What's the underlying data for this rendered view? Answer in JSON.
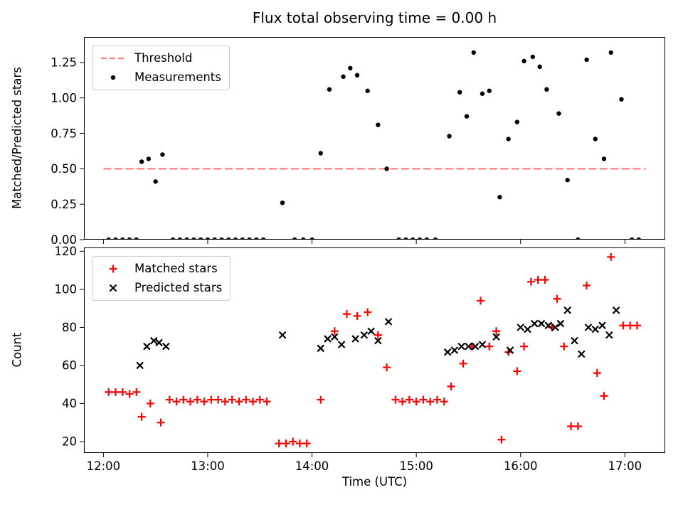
{
  "figure": {
    "title": "Flux total observing time = 0.00 h"
  },
  "chart_data": [
    {
      "type": "scatter",
      "title": "Flux total observing time = 0.00 h",
      "ylabel": "Matched/Predicted stars",
      "x_unit": "minutes after 12:00 UTC",
      "xlim": [
        -11.2,
        323.2
      ],
      "ylim": [
        0,
        1.43
      ],
      "grid": false,
      "legend_position": "upper left",
      "yticks": [
        {
          "v": 0.0,
          "label": "0.00"
        },
        {
          "v": 0.25,
          "label": "0.25"
        },
        {
          "v": 0.5,
          "label": "0.50"
        },
        {
          "v": 0.75,
          "label": "0.75"
        },
        {
          "v": 1.0,
          "label": "1.00"
        },
        {
          "v": 1.25,
          "label": "1.25"
        }
      ],
      "xticks": [
        {
          "t": 0
        },
        {
          "t": 60
        },
        {
          "t": 120
        },
        {
          "t": 180
        },
        {
          "t": 240
        },
        {
          "t": 300
        }
      ],
      "threshold": {
        "label": "Threshold",
        "value": 0.5,
        "color": "#ff7f7f",
        "span": [
          0,
          312
        ],
        "style": "dashed"
      },
      "series": [
        {
          "name": "Measurements",
          "marker": "dot",
          "color": "#000000",
          "points": [
            [
              3,
              0
            ],
            [
              7,
              0
            ],
            [
              11,
              0
            ],
            [
              15,
              0
            ],
            [
              19,
              0
            ],
            [
              22,
              0.55
            ],
            [
              26,
              0.57
            ],
            [
              30,
              0.41
            ],
            [
              34,
              0.6
            ],
            [
              40,
              0
            ],
            [
              44,
              0
            ],
            [
              48,
              0
            ],
            [
              52,
              0
            ],
            [
              56,
              0
            ],
            [
              60,
              0
            ],
            [
              64,
              0
            ],
            [
              68,
              0
            ],
            [
              72,
              0
            ],
            [
              76,
              0
            ],
            [
              80,
              0
            ],
            [
              84,
              0
            ],
            [
              88,
              0
            ],
            [
              92,
              0
            ],
            [
              103,
              0.26
            ],
            [
              110,
              0
            ],
            [
              115,
              0
            ],
            [
              120,
              0
            ],
            [
              125,
              0.61
            ],
            [
              130,
              1.06
            ],
            [
              138,
              1.15
            ],
            [
              142,
              1.21
            ],
            [
              146,
              1.16
            ],
            [
              152,
              1.05
            ],
            [
              158,
              0.81
            ],
            [
              163,
              0.5
            ],
            [
              170,
              0
            ],
            [
              174,
              0
            ],
            [
              178,
              0
            ],
            [
              182,
              0
            ],
            [
              186,
              0
            ],
            [
              191,
              0
            ],
            [
              199,
              0.73
            ],
            [
              205,
              1.04
            ],
            [
              209,
              0.87
            ],
            [
              213,
              1.32
            ],
            [
              218,
              1.03
            ],
            [
              222,
              1.05
            ],
            [
              228,
              0.3
            ],
            [
              233,
              0.71
            ],
            [
              238,
              0.83
            ],
            [
              242,
              1.26
            ],
            [
              247,
              1.29
            ],
            [
              251,
              1.22
            ],
            [
              255,
              1.06
            ],
            [
              262,
              0.89
            ],
            [
              267,
              0.42
            ],
            [
              273,
              0
            ],
            [
              278,
              1.27
            ],
            [
              283,
              0.71
            ],
            [
              288,
              0.57
            ],
            [
              292,
              1.32
            ],
            [
              298,
              0.99
            ],
            [
              304,
              0
            ],
            [
              308,
              0
            ]
          ]
        }
      ]
    },
    {
      "type": "scatter",
      "ylabel": "Count",
      "xlabel": "Time (UTC)",
      "x_unit": "minutes after 12:00 UTC",
      "xlim": [
        -11.2,
        323.2
      ],
      "ylim": [
        14,
        122
      ],
      "grid": false,
      "legend_position": "upper left",
      "yticks": [
        {
          "v": 20,
          "label": "20"
        },
        {
          "v": 40,
          "label": "40"
        },
        {
          "v": 60,
          "label": "60"
        },
        {
          "v": 80,
          "label": "80"
        },
        {
          "v": 100,
          "label": "100"
        },
        {
          "v": 120,
          "label": "120"
        }
      ],
      "xticks": [
        {
          "t": 0,
          "label": "12:00"
        },
        {
          "t": 60,
          "label": "13:00"
        },
        {
          "t": 120,
          "label": "14:00"
        },
        {
          "t": 180,
          "label": "15:00"
        },
        {
          "t": 240,
          "label": "16:00"
        },
        {
          "t": 300,
          "label": "17:00"
        }
      ],
      "series": [
        {
          "name": "Matched stars",
          "marker": "plus",
          "color": "#ff0000",
          "points": [
            [
              3,
              46
            ],
            [
              7,
              46
            ],
            [
              11,
              46
            ],
            [
              15,
              45
            ],
            [
              19,
              46
            ],
            [
              22,
              33
            ],
            [
              27,
              40
            ],
            [
              33,
              30
            ],
            [
              38,
              42
            ],
            [
              42,
              41
            ],
            [
              46,
              42
            ],
            [
              50,
              41
            ],
            [
              54,
              42
            ],
            [
              58,
              41
            ],
            [
              62,
              42
            ],
            [
              66,
              42
            ],
            [
              70,
              41
            ],
            [
              74,
              42
            ],
            [
              78,
              41
            ],
            [
              82,
              42
            ],
            [
              86,
              41
            ],
            [
              90,
              42
            ],
            [
              94,
              41
            ],
            [
              101,
              19
            ],
            [
              105,
              19
            ],
            [
              109,
              20
            ],
            [
              113,
              19
            ],
            [
              117,
              19
            ],
            [
              125,
              42
            ],
            [
              133,
              78
            ],
            [
              140,
              87
            ],
            [
              146,
              86
            ],
            [
              152,
              88
            ],
            [
              158,
              76
            ],
            [
              163,
              59
            ],
            [
              168,
              42
            ],
            [
              172,
              41
            ],
            [
              176,
              42
            ],
            [
              180,
              41
            ],
            [
              184,
              42
            ],
            [
              188,
              41
            ],
            [
              192,
              42
            ],
            [
              196,
              41
            ],
            [
              200,
              49
            ],
            [
              207,
              61
            ],
            [
              212,
              70
            ],
            [
              217,
              94
            ],
            [
              222,
              70
            ],
            [
              226,
              78
            ],
            [
              229,
              21
            ],
            [
              233,
              67
            ],
            [
              238,
              57
            ],
            [
              242,
              70
            ],
            [
              246,
              104
            ],
            [
              250,
              105
            ],
            [
              254,
              105
            ],
            [
              258,
              80
            ],
            [
              261,
              95
            ],
            [
              265,
              70
            ],
            [
              269,
              28
            ],
            [
              273,
              28
            ],
            [
              278,
              102
            ],
            [
              284,
              56
            ],
            [
              288,
              44
            ],
            [
              292,
              117
            ],
            [
              299,
              81
            ],
            [
              303,
              81
            ],
            [
              307,
              81
            ]
          ]
        },
        {
          "name": "Predicted stars",
          "marker": "x",
          "color": "#000000",
          "points": [
            [
              21,
              60
            ],
            [
              25,
              70
            ],
            [
              29,
              73
            ],
            [
              32,
              72
            ],
            [
              36,
              70
            ],
            [
              103,
              76
            ],
            [
              125,
              69
            ],
            [
              129,
              74
            ],
            [
              133,
              75
            ],
            [
              137,
              71
            ],
            [
              145,
              74
            ],
            [
              150,
              76
            ],
            [
              154,
              78
            ],
            [
              158,
              73
            ],
            [
              164,
              83
            ],
            [
              198,
              67
            ],
            [
              202,
              68
            ],
            [
              206,
              70
            ],
            [
              210,
              70
            ],
            [
              214,
              70
            ],
            [
              218,
              71
            ],
            [
              226,
              75
            ],
            [
              234,
              68
            ],
            [
              240,
              80
            ],
            [
              244,
              79
            ],
            [
              248,
              82
            ],
            [
              252,
              82
            ],
            [
              256,
              81
            ],
            [
              260,
              80
            ],
            [
              263,
              82
            ],
            [
              267,
              89
            ],
            [
              271,
              73
            ],
            [
              275,
              66
            ],
            [
              279,
              80
            ],
            [
              283,
              79
            ],
            [
              287,
              81
            ],
            [
              291,
              76
            ],
            [
              295,
              89
            ]
          ]
        }
      ]
    }
  ]
}
